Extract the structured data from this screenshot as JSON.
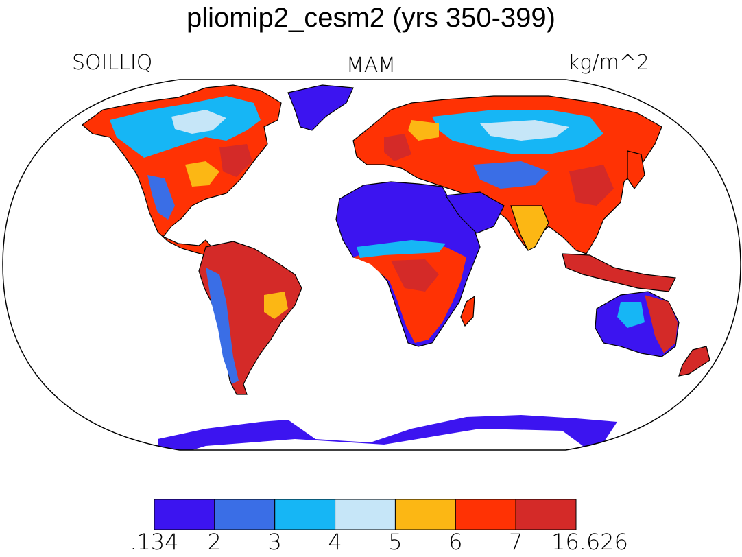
{
  "title": "pliomip2_cesm2 (yrs 350-399)",
  "variable": "SOILLIQ",
  "season": "MAM",
  "units": "kg/m^2",
  "colorbar": {
    "colors": [
      "#3c14f0",
      "#3a6ee6",
      "#16b6f5",
      "#c6e6f8",
      "#fcb714",
      "#ff3204",
      "#d42a28"
    ],
    "tick_labels": [
      ".134",
      "2",
      "3",
      "4",
      "5",
      "6",
      "7",
      "16.626"
    ]
  }
}
